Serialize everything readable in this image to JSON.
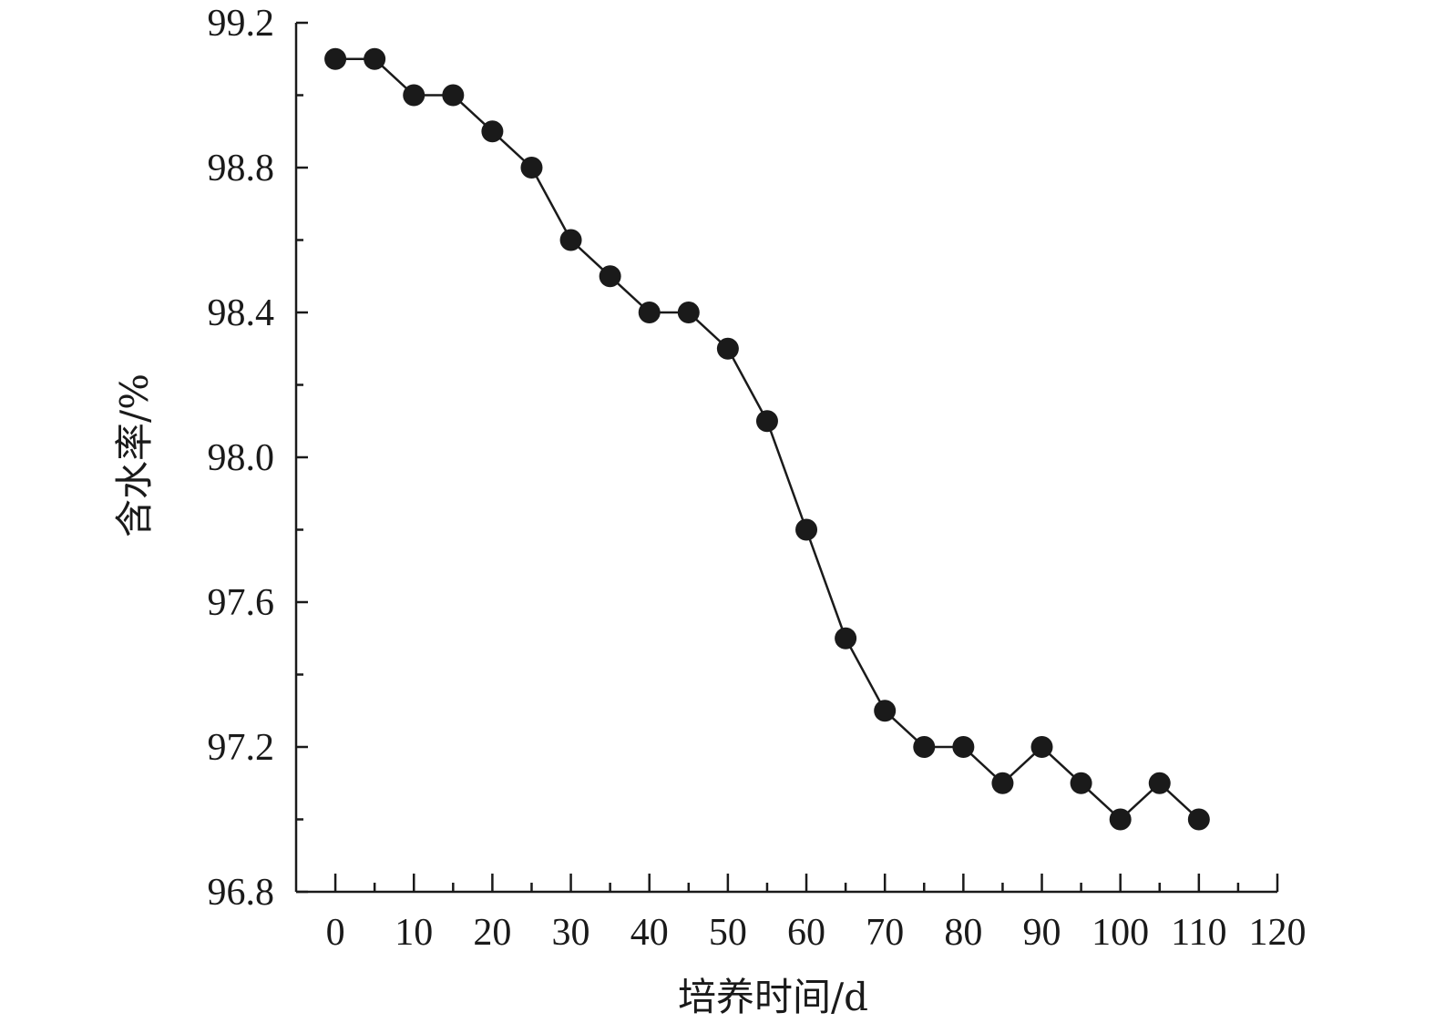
{
  "chart_data": {
    "type": "line",
    "xlabel": "培养时间/d",
    "ylabel": "含水率/%",
    "xlim": [
      -5,
      120
    ],
    "ylim": [
      96.8,
      99.2
    ],
    "x_ticks": [
      0,
      10,
      20,
      30,
      40,
      50,
      60,
      70,
      80,
      90,
      100,
      110,
      120
    ],
    "x_tick_labels": [
      "0",
      "10",
      "20",
      "30",
      "40",
      "50",
      "60",
      "70",
      "80",
      "90",
      "100",
      "110",
      "120"
    ],
    "y_ticks": [
      96.8,
      97.2,
      97.6,
      98.0,
      98.4,
      98.8,
      99.2
    ],
    "y_tick_labels": [
      "96.8",
      "97.2",
      "97.6",
      "98.0",
      "98.4",
      "98.8",
      "99.2"
    ],
    "grid": false,
    "series": [
      {
        "x": [
          0,
          5,
          10,
          15,
          20,
          25,
          30,
          35,
          40,
          45,
          50,
          55,
          60,
          65,
          70,
          75,
          80,
          85,
          90,
          95,
          100,
          105,
          110
        ],
        "y": [
          99.1,
          99.1,
          99.0,
          99.0,
          98.9,
          98.8,
          98.6,
          98.5,
          98.4,
          98.4,
          98.3,
          98.1,
          97.8,
          97.5,
          97.3,
          97.2,
          97.2,
          97.1,
          97.2,
          97.1,
          97.0,
          97.1,
          97.0
        ],
        "color": "#1a1a1a",
        "marker": "filled-circle"
      }
    ]
  }
}
